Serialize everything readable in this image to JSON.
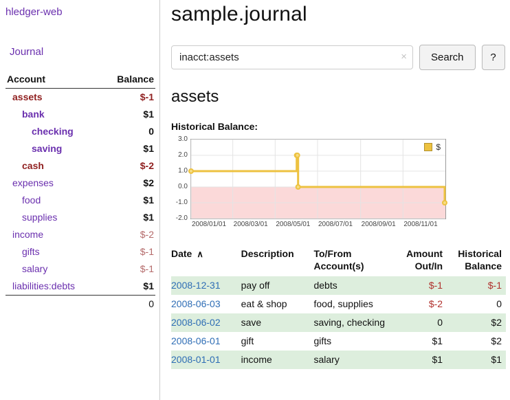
{
  "app": {
    "title": "hledger-web"
  },
  "sidebar": {
    "journal_link": "Journal",
    "headers": {
      "account": "Account",
      "balance": "Balance"
    },
    "accounts": [
      {
        "name": "assets",
        "balance": "$-1"
      },
      {
        "name": "bank",
        "balance": "$1"
      },
      {
        "name": "checking",
        "balance": "0"
      },
      {
        "name": "saving",
        "balance": "$1"
      },
      {
        "name": "cash",
        "balance": "$-2"
      },
      {
        "name": "expenses",
        "balance": "$2"
      },
      {
        "name": "food",
        "balance": "$1"
      },
      {
        "name": "supplies",
        "balance": "$1"
      },
      {
        "name": "income",
        "balance": "$-2"
      },
      {
        "name": "gifts",
        "balance": "$-1"
      },
      {
        "name": "salary",
        "balance": "$-1"
      },
      {
        "name": "liabilities:debts",
        "balance": "$1"
      }
    ],
    "total": "0"
  },
  "main": {
    "title": "sample.journal",
    "search": {
      "value": "inacct:assets",
      "clear_icon": "×",
      "search_button": "Search",
      "help_button": "?"
    },
    "account_heading": "assets",
    "chart_title": "Historical Balance:"
  },
  "chart_data": {
    "type": "line",
    "step": true,
    "title": "Historical Balance:",
    "series": [
      {
        "name": "$",
        "points": [
          [
            "2008-01-01",
            1
          ],
          [
            "2008-06-01",
            2
          ],
          [
            "2008-06-02",
            2
          ],
          [
            "2008-06-03",
            0
          ],
          [
            "2008-12-31",
            -1
          ]
        ]
      }
    ],
    "ylim": [
      -2,
      3
    ],
    "yticks": [
      "3.0",
      "2.0",
      "1.0",
      "0.0",
      "-1.0",
      "-2.0"
    ],
    "xticks": [
      "2008/01/01",
      "2008/03/01",
      "2008/05/01",
      "2008/07/01",
      "2008/09/01",
      "2008/11/01"
    ],
    "legend_position": "top-right",
    "grid": true,
    "colors": {
      "line": "#edc240",
      "marker_fill": "#f7dd84",
      "negative_region": "#fbd9d9",
      "grid": "#e4e4e4",
      "border": "#999999"
    }
  },
  "register": {
    "headers": {
      "date": "Date",
      "sort_indicator": "∧",
      "description": "Description",
      "accounts": "To/From Account(s)",
      "amount": "Amount Out/In",
      "balance": "Historical Balance"
    },
    "rows": [
      {
        "date": "2008-12-31",
        "description": "pay off",
        "accounts": "debts",
        "amount": "$-1",
        "balance": "$-1"
      },
      {
        "date": "2008-06-03",
        "description": "eat & shop",
        "accounts": "food, supplies",
        "amount": "$-2",
        "balance": "0"
      },
      {
        "date": "2008-06-02",
        "description": "save",
        "accounts": "saving, checking",
        "amount": "0",
        "balance": "$2"
      },
      {
        "date": "2008-06-01",
        "description": "gift",
        "accounts": "gifts",
        "amount": "$1",
        "balance": "$2"
      },
      {
        "date": "2008-01-01",
        "description": "income",
        "accounts": "salary",
        "amount": "$1",
        "balance": "$1"
      }
    ]
  },
  "colors": {
    "link_purple": "#6a2fae",
    "negative_strong": "#8f1f1f",
    "negative_muted": "#b46a6a",
    "register_negative": "#b0302c",
    "date_link_blue": "#2e6db5",
    "row_green": "#ddeedd",
    "sidebar_divider": "#cccccc"
  }
}
